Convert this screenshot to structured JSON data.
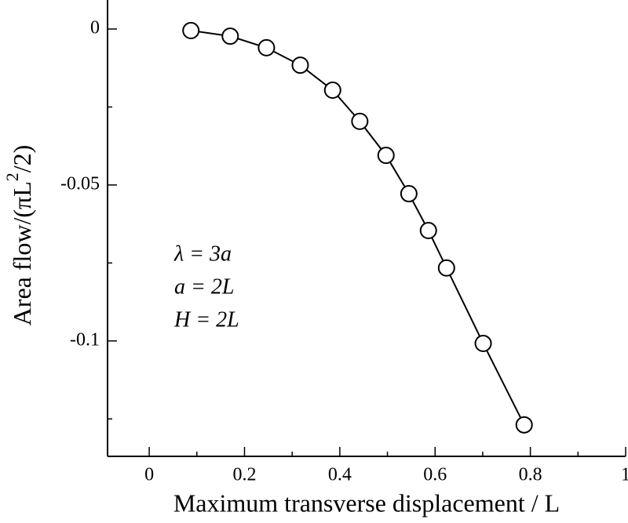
{
  "chart_data": {
    "type": "line",
    "xlabel": "Maximum transverse displacement / L",
    "ylabel": [
      "Area flow/(πL",
      "2",
      "/2)"
    ],
    "annotations": [
      "λ = 3a",
      "a = 2L",
      "H = 2L"
    ],
    "x": [
      0.0875,
      0.17,
      0.246,
      0.317,
      0.385,
      0.442,
      0.497,
      0.545,
      0.586,
      0.624,
      0.701,
      0.787
    ],
    "series": [
      {
        "color": "#000000",
        "values": [
          -0.0005,
          -0.0023,
          -0.006,
          -0.0116,
          -0.0196,
          -0.0296,
          -0.0405,
          -0.0528,
          -0.0646,
          -0.0766,
          -0.1008,
          -0.1269
        ]
      }
    ],
    "xlim": [
      -0.0875,
      1
    ],
    "ylim": [
      -0.137,
      0.0093
    ],
    "xticks": [
      0,
      0.2,
      0.4,
      0.6,
      0.8,
      1
    ],
    "xminorticks": [
      0.1,
      0.3,
      0.5,
      0.7,
      0.9
    ],
    "yticks": [
      0,
      -0.05,
      -0.1
    ],
    "yminorticks": [
      -0.025,
      -0.075,
      -0.125
    ],
    "marker": "open-circle"
  }
}
